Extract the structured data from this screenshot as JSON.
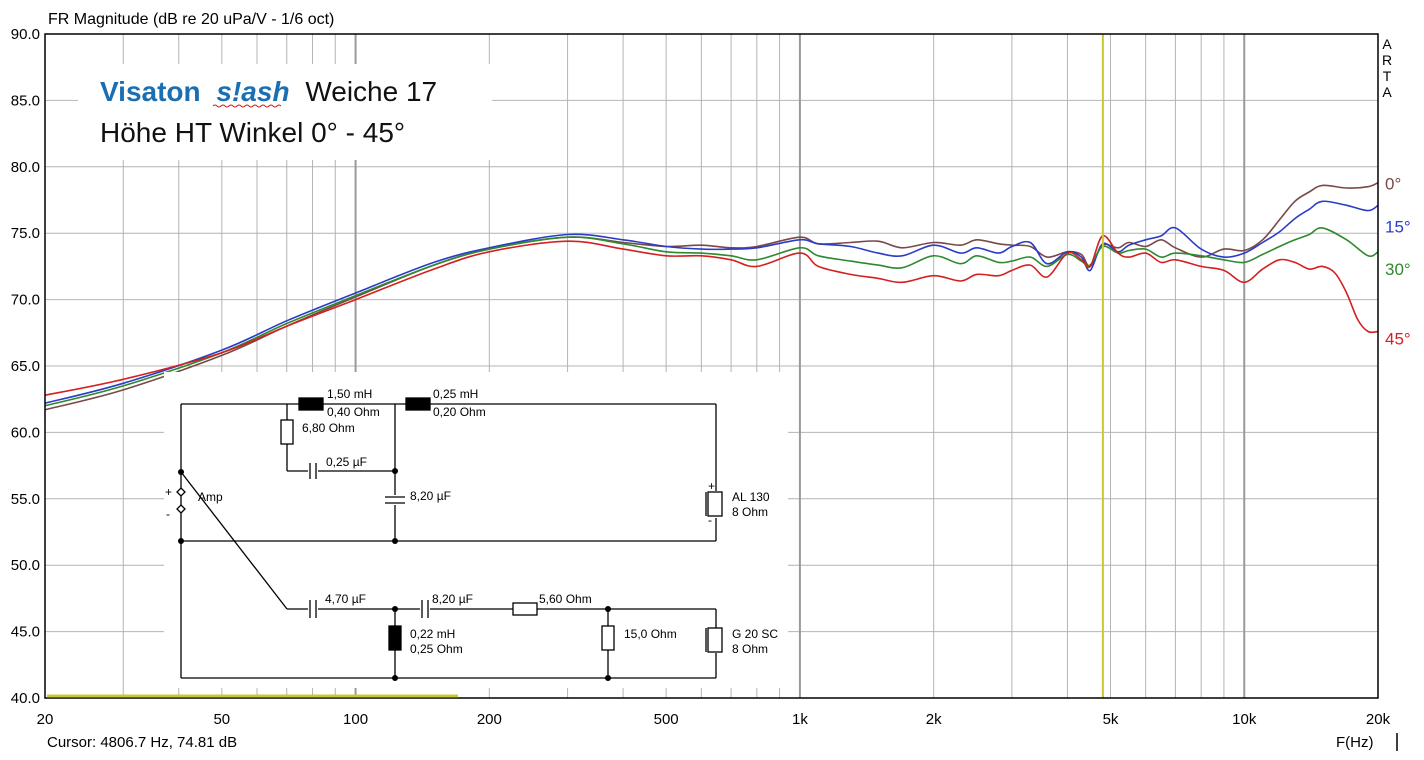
{
  "chart_data": {
    "type": "line",
    "title": "FR Magnitude (dB re 20 uPa/V - 1/6 oct)",
    "xlabel": "F(Hz)",
    "x_scale": "log",
    "xlim": [
      20,
      20000
    ],
    "ylim": [
      40,
      90
    ],
    "x_ticks": [
      {
        "v": 20,
        "label": "20"
      },
      {
        "v": 50,
        "label": "50"
      },
      {
        "v": 100,
        "label": "100"
      },
      {
        "v": 200,
        "label": "200"
      },
      {
        "v": 500,
        "label": "500"
      },
      {
        "v": 1000,
        "label": "1k"
      },
      {
        "v": 2000,
        "label": "2k"
      },
      {
        "v": 5000,
        "label": "5k"
      },
      {
        "v": 10000,
        "label": "10k"
      },
      {
        "v": 20000,
        "label": "20k"
      }
    ],
    "y_ticks": [
      "40.0",
      "45.0",
      "50.0",
      "55.0",
      "60.0",
      "65.0",
      "70.0",
      "75.0",
      "80.0",
      "85.0",
      "90.0"
    ],
    "grid": true,
    "cursor": {
      "freq": 4806.7,
      "text": "Cursor: 4806.7 Hz, 74.81 dB",
      "color": "#c8c832"
    },
    "watermark": [
      "A",
      "R",
      "T",
      "A"
    ],
    "series": [
      {
        "name": "0°",
        "color": "#7a4848",
        "points": [
          [
            20,
            61.7
          ],
          [
            30,
            63.2
          ],
          [
            50,
            65.8
          ],
          [
            70,
            68.0
          ],
          [
            100,
            70.2
          ],
          [
            150,
            72.6
          ],
          [
            200,
            73.8
          ],
          [
            300,
            74.7
          ],
          [
            400,
            74.3
          ],
          [
            500,
            74.0
          ],
          [
            600,
            74.1
          ],
          [
            700,
            73.9
          ],
          [
            800,
            74.0
          ],
          [
            1000,
            74.7
          ],
          [
            1100,
            74.2
          ],
          [
            1300,
            74.3
          ],
          [
            1500,
            74.4
          ],
          [
            1700,
            73.9
          ],
          [
            2000,
            74.3
          ],
          [
            2300,
            74.1
          ],
          [
            2500,
            74.5
          ],
          [
            2800,
            74.2
          ],
          [
            3000,
            74.1
          ],
          [
            3300,
            74.0
          ],
          [
            3600,
            73.2
          ],
          [
            4000,
            73.6
          ],
          [
            4300,
            73.4
          ],
          [
            4500,
            72.5
          ],
          [
            4800,
            74.1
          ],
          [
            5200,
            73.9
          ],
          [
            5500,
            74.3
          ],
          [
            6000,
            74.0
          ],
          [
            6500,
            74.5
          ],
          [
            7000,
            73.9
          ],
          [
            8000,
            73.2
          ],
          [
            9000,
            73.8
          ],
          [
            10000,
            73.7
          ],
          [
            11000,
            74.5
          ],
          [
            12000,
            76.0
          ],
          [
            13000,
            77.4
          ],
          [
            14000,
            78.1
          ],
          [
            15000,
            78.6
          ],
          [
            17000,
            78.4
          ],
          [
            19000,
            78.5
          ],
          [
            20000,
            78.8
          ]
        ]
      },
      {
        "name": "15°",
        "color": "#2a3cc8",
        "points": [
          [
            20,
            62.2
          ],
          [
            30,
            63.7
          ],
          [
            50,
            66.2
          ],
          [
            70,
            68.4
          ],
          [
            100,
            70.5
          ],
          [
            150,
            72.8
          ],
          [
            200,
            73.9
          ],
          [
            300,
            74.9
          ],
          [
            400,
            74.5
          ],
          [
            500,
            74.0
          ],
          [
            600,
            73.8
          ],
          [
            700,
            73.8
          ],
          [
            800,
            73.9
          ],
          [
            1000,
            74.5
          ],
          [
            1100,
            74.2
          ],
          [
            1300,
            74.0
          ],
          [
            1500,
            73.5
          ],
          [
            1700,
            73.3
          ],
          [
            2000,
            74.1
          ],
          [
            2300,
            73.5
          ],
          [
            2500,
            73.9
          ],
          [
            2800,
            73.5
          ],
          [
            3000,
            74.0
          ],
          [
            3300,
            74.3
          ],
          [
            3600,
            72.7
          ],
          [
            4000,
            73.6
          ],
          [
            4300,
            73.2
          ],
          [
            4500,
            72.2
          ],
          [
            4800,
            74.2
          ],
          [
            5200,
            73.6
          ],
          [
            5500,
            74.1
          ],
          [
            6000,
            74.5
          ],
          [
            6500,
            74.8
          ],
          [
            7000,
            75.4
          ],
          [
            8000,
            73.8
          ],
          [
            9000,
            73.2
          ],
          [
            10000,
            73.5
          ],
          [
            11000,
            74.3
          ],
          [
            12000,
            75.1
          ],
          [
            13000,
            76.1
          ],
          [
            14000,
            76.8
          ],
          [
            15000,
            77.4
          ],
          [
            17000,
            77.1
          ],
          [
            19000,
            76.7
          ],
          [
            20000,
            77.1
          ]
        ]
      },
      {
        "name": "30°",
        "color": "#2e8a2e",
        "points": [
          [
            20,
            62.0
          ],
          [
            30,
            63.5
          ],
          [
            50,
            66.0
          ],
          [
            70,
            68.2
          ],
          [
            100,
            70.3
          ],
          [
            150,
            72.6
          ],
          [
            200,
            73.8
          ],
          [
            300,
            74.7
          ],
          [
            400,
            74.2
          ],
          [
            500,
            73.6
          ],
          [
            600,
            73.5
          ],
          [
            700,
            73.3
          ],
          [
            800,
            73.0
          ],
          [
            1000,
            73.9
          ],
          [
            1100,
            73.3
          ],
          [
            1300,
            72.9
          ],
          [
            1500,
            72.6
          ],
          [
            1700,
            72.4
          ],
          [
            2000,
            73.3
          ],
          [
            2300,
            72.7
          ],
          [
            2500,
            73.3
          ],
          [
            2800,
            72.8
          ],
          [
            3000,
            72.9
          ],
          [
            3300,
            73.2
          ],
          [
            3600,
            72.5
          ],
          [
            4000,
            73.4
          ],
          [
            4300,
            72.9
          ],
          [
            4500,
            72.6
          ],
          [
            4800,
            74.0
          ],
          [
            5200,
            73.5
          ],
          [
            5500,
            73.7
          ],
          [
            6000,
            73.8
          ],
          [
            6500,
            73.2
          ],
          [
            7000,
            73.5
          ],
          [
            8000,
            73.3
          ],
          [
            9000,
            73.0
          ],
          [
            10000,
            72.8
          ],
          [
            11000,
            73.4
          ],
          [
            12000,
            74.0
          ],
          [
            13000,
            74.5
          ],
          [
            14000,
            74.9
          ],
          [
            15000,
            75.4
          ],
          [
            17000,
            74.5
          ],
          [
            19000,
            73.3
          ],
          [
            20000,
            73.6
          ]
        ]
      },
      {
        "name": "45°",
        "color": "#d42020",
        "points": [
          [
            20,
            62.8
          ],
          [
            30,
            64.0
          ],
          [
            50,
            66.0
          ],
          [
            70,
            68.0
          ],
          [
            100,
            70.0
          ],
          [
            150,
            72.3
          ],
          [
            200,
            73.6
          ],
          [
            300,
            74.4
          ],
          [
            400,
            73.8
          ],
          [
            500,
            73.3
          ],
          [
            600,
            73.3
          ],
          [
            700,
            73.0
          ],
          [
            800,
            72.5
          ],
          [
            1000,
            73.5
          ],
          [
            1100,
            72.5
          ],
          [
            1300,
            71.9
          ],
          [
            1500,
            71.6
          ],
          [
            1700,
            71.3
          ],
          [
            2000,
            71.8
          ],
          [
            2300,
            71.4
          ],
          [
            2500,
            71.9
          ],
          [
            2800,
            71.8
          ],
          [
            3000,
            72.2
          ],
          [
            3300,
            72.6
          ],
          [
            3600,
            71.7
          ],
          [
            4000,
            73.5
          ],
          [
            4300,
            73.0
          ],
          [
            4500,
            72.5
          ],
          [
            4800,
            74.8
          ],
          [
            5200,
            73.5
          ],
          [
            5500,
            73.2
          ],
          [
            6000,
            73.5
          ],
          [
            6500,
            72.8
          ],
          [
            7000,
            73.0
          ],
          [
            8000,
            72.5
          ],
          [
            9000,
            72.2
          ],
          [
            10000,
            71.3
          ],
          [
            11000,
            72.3
          ],
          [
            12000,
            73.0
          ],
          [
            13000,
            72.8
          ],
          [
            14000,
            72.3
          ],
          [
            15000,
            72.5
          ],
          [
            16000,
            72.0
          ],
          [
            17000,
            70.5
          ],
          [
            18000,
            68.5
          ],
          [
            19000,
            67.6
          ],
          [
            20000,
            67.6
          ]
        ]
      }
    ]
  },
  "overlay": {
    "brand": "Visaton",
    "model": "s!ash",
    "line1_rest": "Weiche 17",
    "line2": "Höhe  HT  Winkel 0° - 45°"
  },
  "schematic": {
    "labels": {
      "l1a": "1,50 mH",
      "l1b": "0,40 Ohm",
      "l2a": "0,25 mH",
      "l2b": "0,20 Ohm",
      "r1": "6,80 Ohm",
      "c1": "0,25 µF",
      "c2": "8,20 µF",
      "woofer": "AL 130",
      "woofer_imp": "8 Ohm",
      "amp": "Amp",
      "plus": "+",
      "minus": "-",
      "pol_plus": "+",
      "pol_minus": "-",
      "c3": "4,70 µF",
      "c4": "8,20 µF",
      "r2": "5,60 Ohm",
      "l3a": "0,22 mH",
      "l3b": "0,25 Ohm",
      "r3": "15,0 Ohm",
      "tweeter": "G 20 SC",
      "tweeter_imp": "8 Ohm"
    }
  },
  "colors": {
    "background": "#ffffff",
    "grid": "#b4b4b4",
    "grid_major": "#9a9a9a",
    "frame": "#000000",
    "brand": "#1a6fb3",
    "wave": "#d02020"
  }
}
